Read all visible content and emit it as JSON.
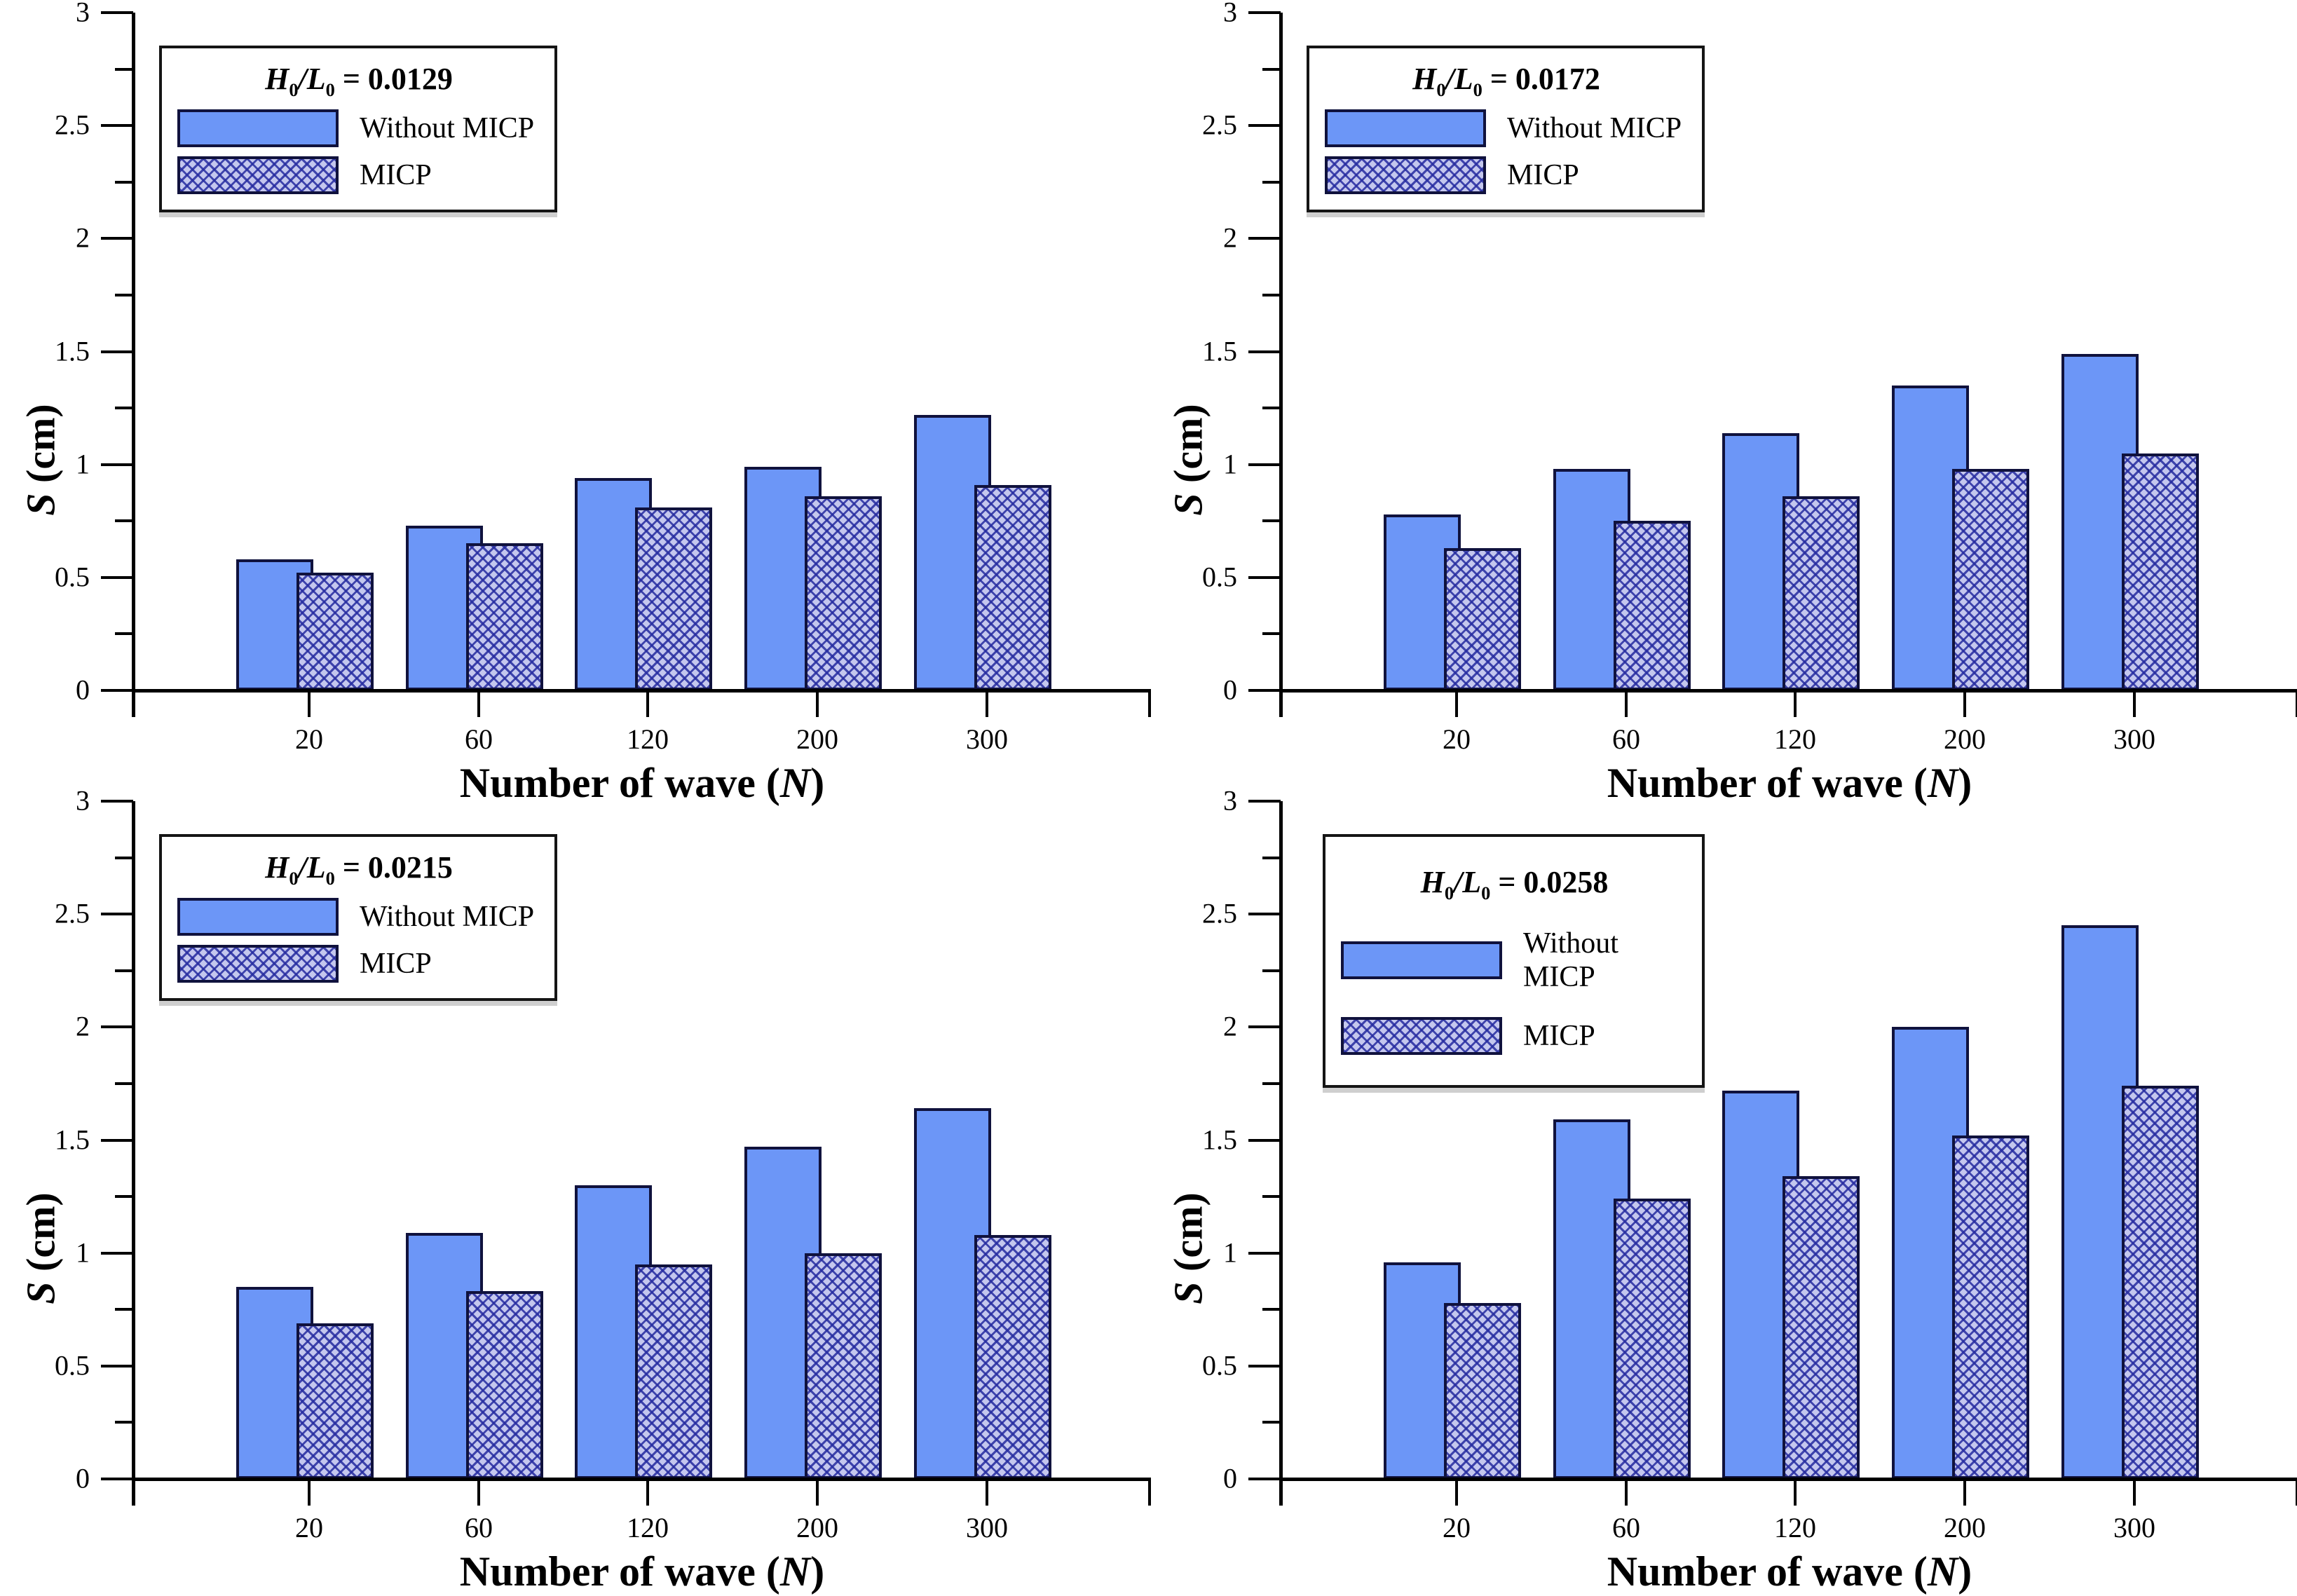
{
  "figure": {
    "y_axis_title": {
      "var": "S",
      "rest": " (cm)"
    },
    "x_axis_title": {
      "prefix": "Number of wave (",
      "var": "N",
      "suffix": ")"
    },
    "legend_ratio": {
      "var1": "H",
      "sub1": "0",
      "slash": "/",
      "var2": "L",
      "sub2": "0",
      "eq": " = "
    },
    "series": [
      {
        "name": "Without MICP"
      },
      {
        "name": "MICP"
      }
    ],
    "colors": {
      "bar_fill": "#6c96f7",
      "bar_outline": "#10123d",
      "hatch_background": "#c4c7ee",
      "hatch_line": "#2e34a6",
      "axis": "#000000"
    }
  },
  "chart_data": [
    {
      "type": "bar",
      "panel": "top-left",
      "legend_title_value": "0.0129",
      "categories": [
        "20",
        "60",
        "120",
        "200",
        "300"
      ],
      "series": [
        {
          "name": "Without MICP",
          "values": [
            0.58,
            0.73,
            0.94,
            0.99,
            1.22
          ]
        },
        {
          "name": "MICP",
          "values": [
            0.52,
            0.65,
            0.81,
            0.86,
            0.91
          ]
        }
      ],
      "xlabel": "Number of wave (N)",
      "ylabel": "S (cm)",
      "ylim": [
        0,
        3
      ],
      "ytick_step": 0.5,
      "yminor_step": 0.25,
      "grid": false,
      "legend_position": "upper-left"
    },
    {
      "type": "bar",
      "panel": "top-right",
      "legend_title_value": "0.0172",
      "categories": [
        "20",
        "60",
        "120",
        "200",
        "300"
      ],
      "series": [
        {
          "name": "Without MICP",
          "values": [
            0.78,
            0.98,
            1.14,
            1.35,
            1.49
          ]
        },
        {
          "name": "MICP",
          "values": [
            0.63,
            0.75,
            0.86,
            0.98,
            1.05
          ]
        }
      ],
      "xlabel": "Number of wave (N)",
      "ylabel": "S (cm)",
      "ylim": [
        0,
        3
      ],
      "ytick_step": 0.5,
      "yminor_step": 0.25,
      "grid": false,
      "legend_position": "upper-left"
    },
    {
      "type": "bar",
      "panel": "bottom-left",
      "legend_title_value": "0.0215",
      "categories": [
        "20",
        "60",
        "120",
        "200",
        "300"
      ],
      "series": [
        {
          "name": "Without MICP",
          "values": [
            0.85,
            1.09,
            1.3,
            1.47,
            1.64
          ]
        },
        {
          "name": "MICP",
          "values": [
            0.69,
            0.83,
            0.95,
            1.0,
            1.08
          ]
        }
      ],
      "xlabel": "Number of wave (N)",
      "ylabel": "S (cm)",
      "ylim": [
        0,
        3
      ],
      "ytick_step": 0.5,
      "yminor_step": 0.25,
      "grid": false,
      "legend_position": "upper-left"
    },
    {
      "type": "bar",
      "panel": "bottom-right",
      "legend_title_value": "0.0258",
      "categories": [
        "20",
        "60",
        "120",
        "200",
        "300"
      ],
      "series": [
        {
          "name": "Without MICP",
          "values": [
            0.96,
            1.59,
            1.72,
            2.0,
            2.45
          ]
        },
        {
          "name": "MICP",
          "values": [
            0.78,
            1.24,
            1.34,
            1.52,
            1.74
          ]
        }
      ],
      "xlabel": "Number of wave (N)",
      "ylabel": "S (cm)",
      "ylim": [
        0,
        3
      ],
      "ytick_step": 0.5,
      "yminor_step": 0.25,
      "grid": false,
      "legend_position": "upper-left"
    }
  ]
}
